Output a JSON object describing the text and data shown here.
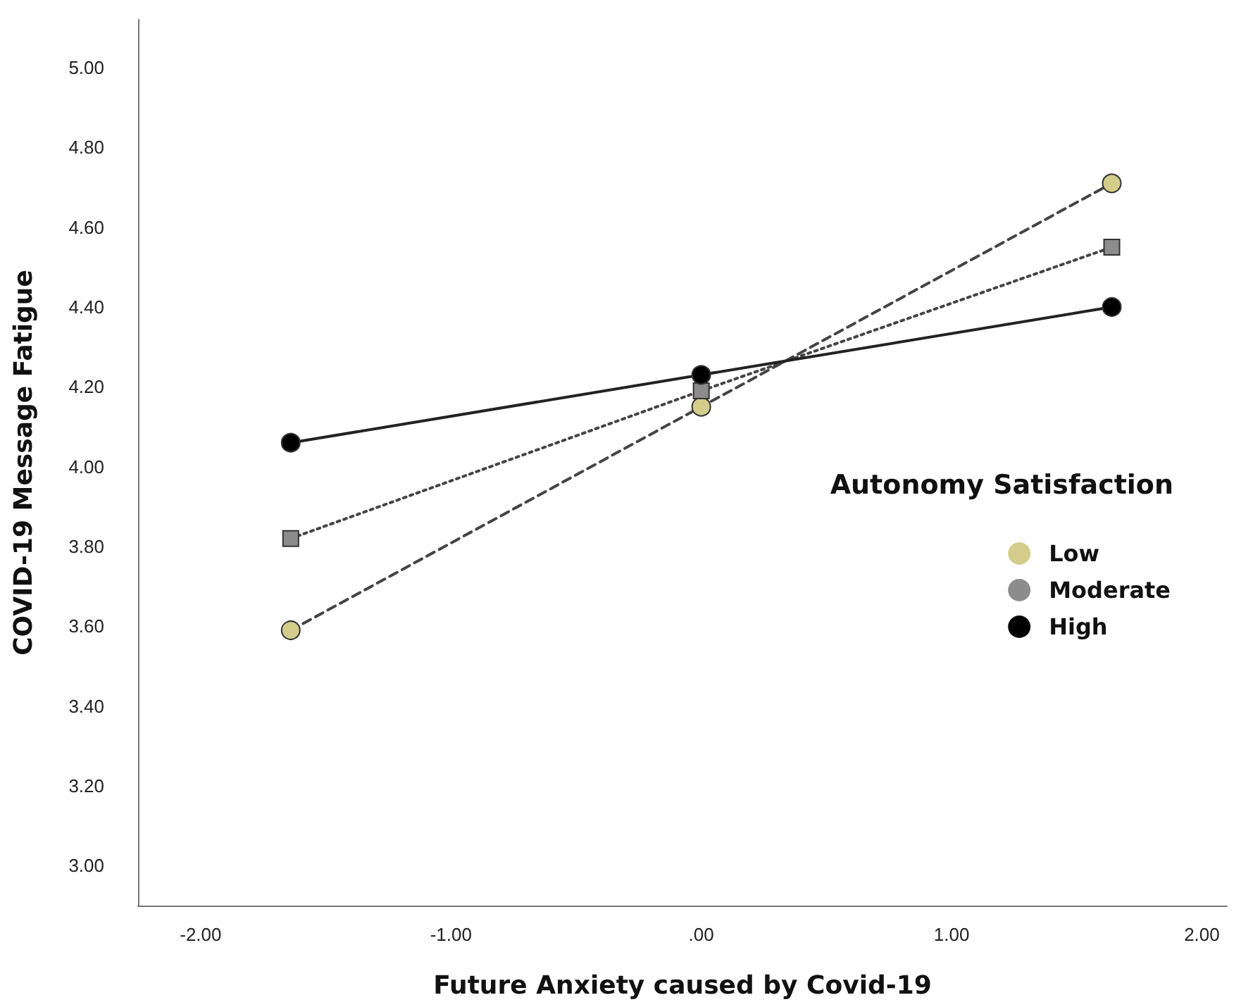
{
  "chart_data": {
    "type": "line",
    "xlabel": "Future Anxiety caused by Covid-19",
    "ylabel": "COVID-19 Message Fatigue",
    "legend_title": "Autonomy Satisfaction",
    "series": [
      {
        "name": "Low",
        "color": "#d4cc8a",
        "x": [
          -1.64,
          0,
          1.64
        ],
        "values": [
          3.59,
          4.15,
          4.71
        ],
        "line_style": "dashed",
        "marker": "circle"
      },
      {
        "name": "Moderate",
        "color": "#8c8c8c",
        "x": [
          -1.64,
          0,
          1.64
        ],
        "values": [
          3.82,
          4.19,
          4.55
        ],
        "line_style": "dotted",
        "marker": "square"
      },
      {
        "name": "High",
        "color": "#000000",
        "x": [
          -1.64,
          0,
          1.64
        ],
        "values": [
          4.06,
          4.23,
          4.4
        ],
        "line_style": "solid",
        "marker": "circle"
      }
    ],
    "xlim": [
      -2.25,
      2.1
    ],
    "xticks": [
      {
        "value": -2,
        "label": "-2.00"
      },
      {
        "value": -1,
        "label": "-1.00"
      },
      {
        "value": 0,
        "label": ".00"
      },
      {
        "value": 1,
        "label": "1.00"
      },
      {
        "value": 2,
        "label": "2.00"
      }
    ],
    "ylim": [
      2.9,
      5.12
    ],
    "yticks": [
      {
        "value": 3,
        "label": "3.00"
      },
      {
        "value": 3.2,
        "label": "3.20"
      },
      {
        "value": 3.4,
        "label": "3.40"
      },
      {
        "value": 3.6,
        "label": "3.60"
      },
      {
        "value": 3.8,
        "label": "3.80"
      },
      {
        "value": 4,
        "label": "4.00"
      },
      {
        "value": 4.2,
        "label": "4.20"
      },
      {
        "value": 4.4,
        "label": "4.40"
      },
      {
        "value": 4.6,
        "label": "4.60"
      },
      {
        "value": 4.8,
        "label": "4.80"
      },
      {
        "value": 5,
        "label": "5.00"
      }
    ],
    "grid": false,
    "legend": "right"
  }
}
